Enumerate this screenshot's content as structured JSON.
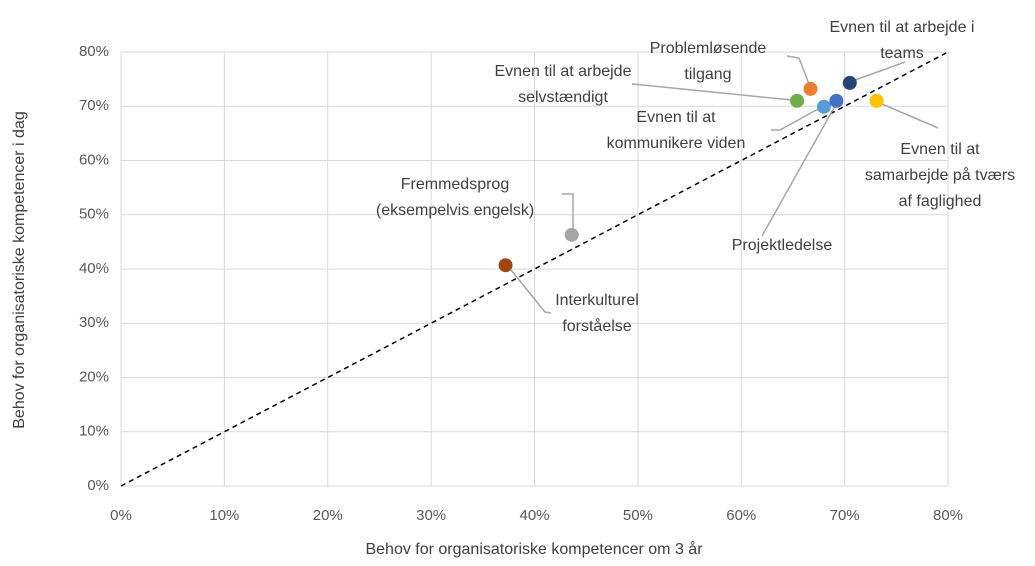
{
  "chart_data": {
    "type": "scatter",
    "xlabel": "Behov for organisatoriske kompetencer om 3 år",
    "ylabel": "Behov for organisatoriske kompetencer i dag",
    "xlim": [
      0,
      80
    ],
    "ylim": [
      0,
      80
    ],
    "xticks": [
      {
        "value": 0,
        "label": "0%"
      },
      {
        "value": 10,
        "label": "10%"
      },
      {
        "value": 20,
        "label": "20%"
      },
      {
        "value": 30,
        "label": "30%"
      },
      {
        "value": 40,
        "label": "40%"
      },
      {
        "value": 50,
        "label": "50%"
      },
      {
        "value": 60,
        "label": "60%"
      },
      {
        "value": 70,
        "label": "70%"
      },
      {
        "value": 80,
        "label": "80%"
      }
    ],
    "yticks": [
      {
        "value": 0,
        "label": "0%"
      },
      {
        "value": 10,
        "label": "10%"
      },
      {
        "value": 20,
        "label": "20%"
      },
      {
        "value": 30,
        "label": "30%"
      },
      {
        "value": 40,
        "label": "40%"
      },
      {
        "value": 50,
        "label": "50%"
      },
      {
        "value": 60,
        "label": "60%"
      },
      {
        "value": 70,
        "label": "70%"
      },
      {
        "value": 80,
        "label": "80%"
      }
    ],
    "grid": true,
    "series": [
      {
        "label": [
          "Evnen til at arbejde i",
          "teams"
        ],
        "color": "#264478",
        "x": [
          70.5
        ],
        "values": [
          74.3
        ]
      },
      {
        "label": [
          "Problemløsende",
          "tilgang"
        ],
        "color": "#ed7d31",
        "x": [
          66.7
        ],
        "values": [
          73.2
        ]
      },
      {
        "label": [
          "Evnen til at arbejde",
          "selvstændigt"
        ],
        "color": "#70ad47",
        "x": [
          65.4
        ],
        "values": [
          71
        ]
      },
      {
        "label": [
          "Evnen til at",
          "kommunikere viden"
        ],
        "color": "#5b9bd5",
        "x": [
          68
        ],
        "values": [
          69.9
        ]
      },
      {
        "label": [
          "Evnen til at",
          "samarbejde på tværs",
          "af faglighed"
        ],
        "color": "#ffc000",
        "x": [
          73.1
        ],
        "values": [
          71
        ]
      },
      {
        "label": [
          "Projektledelse"
        ],
        "color": "#4472c4",
        "x": [
          69.2
        ],
        "values": [
          71
        ]
      },
      {
        "label": [
          "Fremmedsprog",
          "(eksempelvis engelsk)"
        ],
        "color": "#a5a5a5",
        "x": [
          43.6
        ],
        "values": [
          46.3
        ]
      },
      {
        "label": [
          "Interkulturel",
          "forståelse"
        ],
        "color": "#9e480e",
        "x": [
          37.2
        ],
        "values": [
          40.7
        ]
      }
    ]
  }
}
